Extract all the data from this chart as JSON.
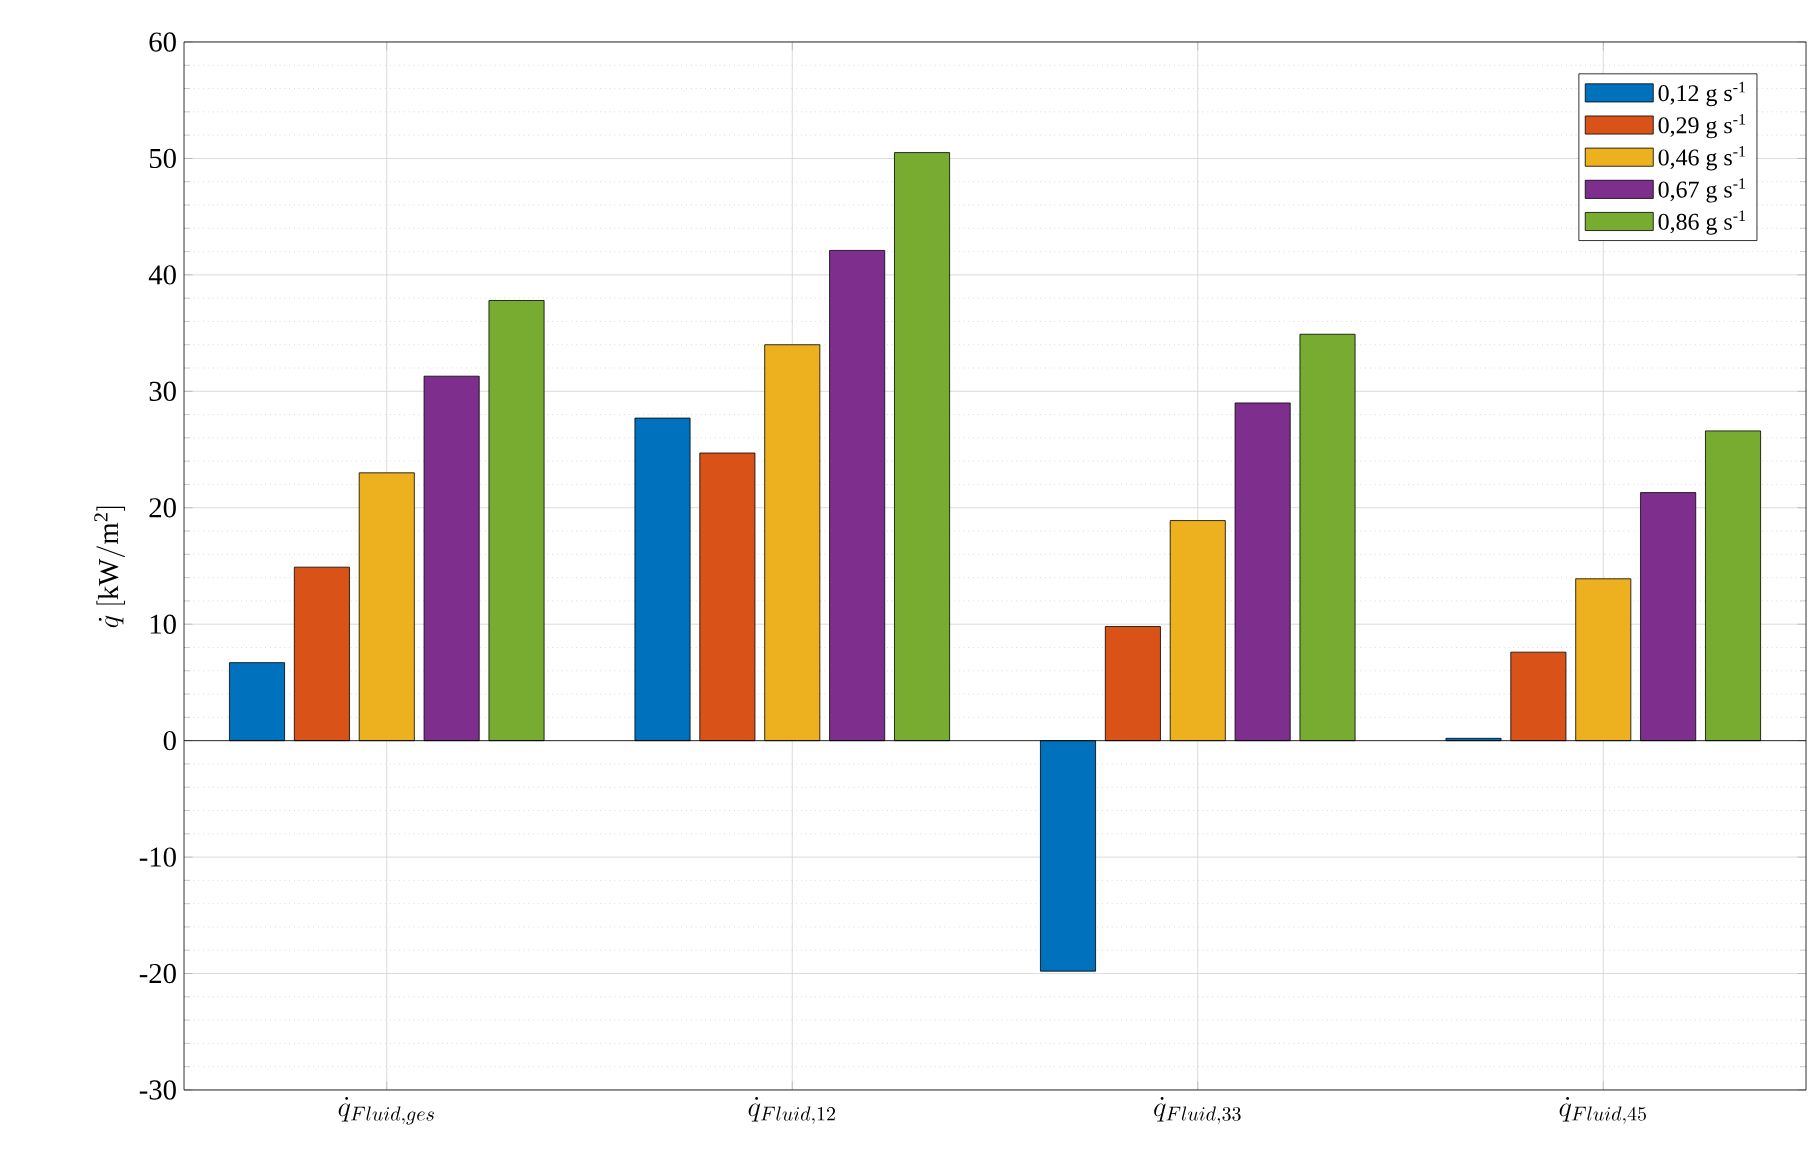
{
  "chart_data": {
    "type": "bar",
    "categories": [
      "\\dot{q}_{Fluid,ges}",
      "\\dot{q}_{Fluid,12}",
      "\\dot{q}_{Fluid,33}",
      "\\dot{q}_{Fluid,45}"
    ],
    "ylabel": "\\dot{q}\\ [\\mathrm{kW/m^2}]",
    "series": [
      {
        "name": "0,12 g s$^{-1}$",
        "color": "#0072bd",
        "values": [
          6.7,
          27.7,
          -19.8,
          0.2
        ]
      },
      {
        "name": "0,29 g s$^{-1}$",
        "color": "#d95319",
        "values": [
          14.9,
          24.7,
          9.8,
          7.6
        ]
      },
      {
        "name": "0,46 g s$^{-1}$",
        "color": "#edb120",
        "values": [
          23.0,
          34.0,
          18.9,
          13.9
        ]
      },
      {
        "name": "0,67 g s$^{-1}$",
        "color": "#7e2f8e",
        "values": [
          31.3,
          42.1,
          29.0,
          21.3
        ]
      },
      {
        "name": "0,86 g s$^{-1}$",
        "color": "#77ac30",
        "values": [
          37.8,
          50.5,
          34.9,
          26.6
        ]
      }
    ],
    "ylim": [
      -30,
      60
    ],
    "yticks": [
      -30,
      -20,
      -10,
      0,
      10,
      20,
      30,
      40,
      50,
      60
    ],
    "grid": true,
    "legend": "top right"
  }
}
